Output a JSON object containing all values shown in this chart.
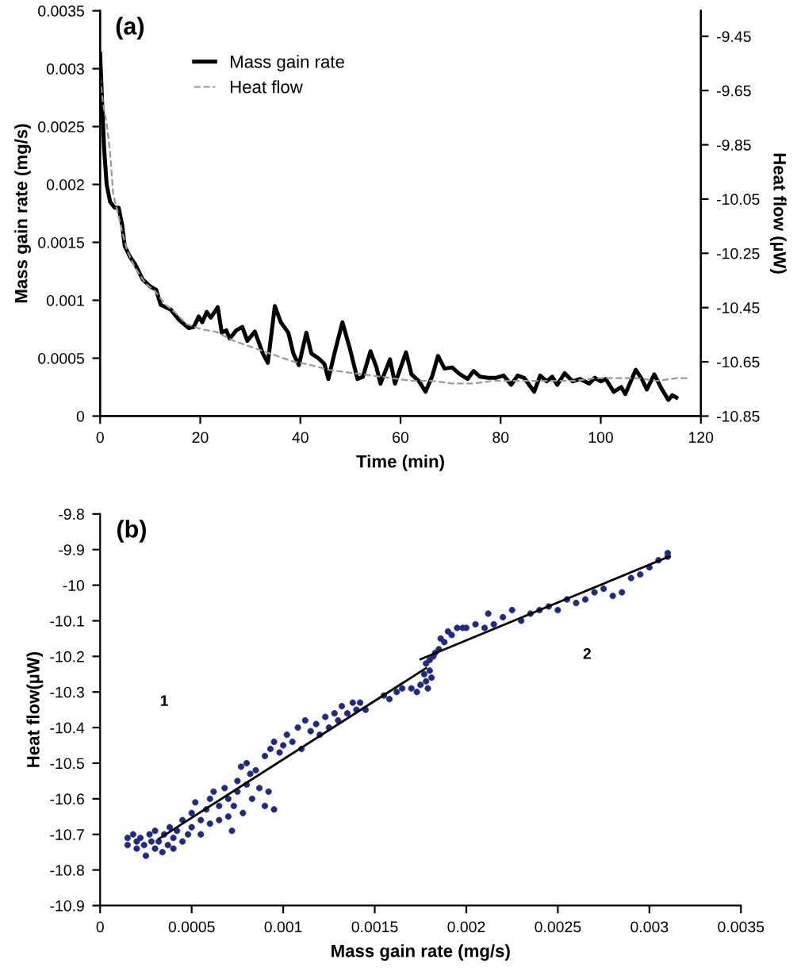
{
  "chart_data": [
    {
      "type": "line",
      "title": "(a)",
      "xlabel": "Time (min)",
      "ylabel": "Mass gain rate (mg/s)",
      "y2label": "Heat flow (µW)",
      "xlim": [
        0,
        120
      ],
      "xticks": [
        0,
        20,
        40,
        60,
        80,
        100,
        120
      ],
      "ylim": [
        0,
        0.0035
      ],
      "yticks": [
        0,
        0.0005,
        0.001,
        0.0015,
        0.002,
        0.0025,
        0.003,
        0.0035
      ],
      "y2lim": [
        -10.85,
        -9.356
      ],
      "y2ticks": [
        -10.85,
        -10.65,
        -10.45,
        -10.25,
        -10.05,
        -9.85,
        -9.65,
        -9.45
      ],
      "legend": "top left",
      "grid": false,
      "series": [
        {
          "name": "Mass gain rate",
          "color": "#000000",
          "line_style": "solid",
          "x": [
            0,
            0.4,
            0.8,
            1.3,
            2.0,
            2.9,
            3.7,
            4.4,
            4.9,
            5.9,
            7.0,
            8.5,
            10.0,
            11.2,
            12.1,
            14.1,
            15.8,
            17.7,
            18.7,
            19.7,
            20.4,
            21.3,
            22.1,
            23.5,
            24.3,
            25.2,
            25.9,
            27.2,
            28.4,
            29.4,
            30.9,
            32.5,
            33.5,
            34.9,
            36.1,
            37.6,
            38.6,
            39.7,
            41.2,
            42.2,
            43.6,
            44.8,
            45.6,
            46.8,
            48.4,
            49.9,
            51.4,
            52.5,
            54.0,
            55.2,
            56.0,
            57.9,
            58.9,
            61.1,
            62.2,
            63.7,
            65.0,
            66.3,
            67.5,
            68.8,
            70.3,
            71.9,
            73.4,
            74.6,
            75.9,
            77.5,
            79.0,
            80.6,
            82.1,
            83.4,
            84.7,
            85.7,
            86.7,
            87.9,
            89.2,
            90.3,
            91.3,
            92.8,
            94.4,
            95.9,
            97.7,
            98.8,
            100.0,
            101.0,
            102.6,
            104.1,
            104.9,
            107.0,
            108.2,
            109.2,
            110.7,
            112.1,
            113.5,
            114.3,
            115.1
          ],
          "values": [
            0.00313,
            0.00271,
            0.00231,
            0.002,
            0.00185,
            0.0018,
            0.0018,
            0.00165,
            0.00147,
            0.00138,
            0.00131,
            0.00118,
            0.00112,
            0.00109,
            0.00096,
            0.00092,
            0.00083,
            0.00076,
            0.00077,
            0.00086,
            0.00081,
            0.0009,
            0.00085,
            0.00094,
            0.00072,
            0.00074,
            0.00067,
            0.00074,
            0.00077,
            0.00065,
            0.00073,
            0.00054,
            0.00046,
            0.00095,
            0.00081,
            0.00072,
            0.00054,
            0.00044,
            0.00072,
            0.00054,
            0.0005,
            0.00045,
            0.00032,
            0.00054,
            0.00081,
            0.00058,
            0.00032,
            0.00034,
            0.00056,
            0.00042,
            0.00028,
            0.00049,
            0.00028,
            0.00055,
            0.00036,
            0.0003,
            0.00021,
            0.00034,
            0.00052,
            0.00041,
            0.00042,
            0.00036,
            0.00032,
            0.00039,
            0.00034,
            0.00033,
            0.00033,
            0.00035,
            0.00027,
            0.00035,
            0.00033,
            0.00027,
            0.00021,
            0.00035,
            0.0003,
            0.00034,
            0.00027,
            0.00037,
            0.0003,
            0.00032,
            0.00028,
            0.00033,
            0.0003,
            0.00032,
            0.00021,
            0.00025,
            0.00019,
            0.0004,
            0.00032,
            0.00023,
            0.00036,
            0.00024,
            0.00014,
            0.00018,
            0.00016
          ]
        },
        {
          "name": "Heat flow",
          "color": "#999999",
          "line_style": "dashed",
          "axis": "y2",
          "x": [
            0,
            0.6,
            1.3,
            2.0,
            2.6,
            3.4,
            4.4,
            5.4,
            6.9,
            9.0,
            11.0,
            13.1,
            15.1,
            17.2,
            20.2,
            23.3,
            26.4,
            29.4,
            32.5,
            35.6,
            38.7,
            41.7,
            45.8,
            49.9,
            53.99,
            58.1,
            62.2,
            66.3,
            70.3,
            74.4,
            78.5,
            82.6,
            86.7,
            90.8,
            94.9,
            99.0,
            103.1,
            107.2,
            111.3,
            115.3,
            117.4
          ],
          "values": [
            -9.6,
            -9.7,
            -9.77,
            -9.88,
            -10.03,
            -10.09,
            -10.17,
            -10.24,
            -10.3,
            -10.36,
            -10.39,
            -10.44,
            -10.47,
            -10.51,
            -10.53,
            -10.54,
            -10.57,
            -10.59,
            -10.61,
            -10.63,
            -10.65,
            -10.66,
            -10.68,
            -10.69,
            -10.7,
            -10.71,
            -10.72,
            -10.72,
            -10.73,
            -10.73,
            -10.72,
            -10.72,
            -10.72,
            -10.72,
            -10.72,
            -10.71,
            -10.71,
            -10.71,
            -10.72,
            -10.71,
            -10.71
          ]
        }
      ]
    },
    {
      "type": "scatter",
      "title": "(b)",
      "xlabel": "Mass gain rate (mg/s)",
      "ylabel": "Heat flow(µW)",
      "xlim": [
        0,
        0.0035
      ],
      "xticks": [
        0,
        0.0005,
        0.001,
        0.0015,
        0.002,
        0.0025,
        0.003,
        0.0035
      ],
      "ylim": [
        -10.9,
        -9.8
      ],
      "yticks": [
        -10.9,
        -10.8,
        -10.7,
        -10.6,
        -10.5,
        -10.4,
        -10.3,
        -10.2,
        -10.1,
        -10,
        -9.9,
        -9.8
      ],
      "grid": false,
      "annotations": [
        "1",
        "2"
      ],
      "series": [
        {
          "color": "#1f2a80",
          "marker": "circle",
          "x": [
            0.00015,
            0.00015,
            0.00018,
            0.0002,
            0.0002,
            0.00022,
            0.00024,
            0.00025,
            0.00027,
            0.00028,
            0.0003,
            0.0003,
            0.00032,
            0.00034,
            0.00035,
            0.00037,
            0.00038,
            0.0004,
            0.0004,
            0.00042,
            0.00045,
            0.00045,
            0.00048,
            0.0005,
            0.0005,
            0.00052,
            0.00055,
            0.00055,
            0.00058,
            0.0006,
            0.0006,
            0.00062,
            0.00065,
            0.00065,
            0.00068,
            0.0007,
            0.0007,
            0.00072,
            0.00073,
            0.00075,
            0.00075,
            0.00077,
            0.00078,
            0.0008,
            0.0008,
            0.00082,
            0.00083,
            0.00085,
            0.00087,
            0.0009,
            0.0009,
            0.00092,
            0.00093,
            0.00095,
            0.00095,
            0.00098,
            0.001,
            0.00102,
            0.00105,
            0.00108,
            0.0011,
            0.00112,
            0.00115,
            0.00118,
            0.0012,
            0.00123,
            0.00125,
            0.00128,
            0.0013,
            0.00132,
            0.00135,
            0.00138,
            0.0014,
            0.00142,
            0.00145,
            0.00155,
            0.00158,
            0.00162,
            0.00165,
            0.0017,
            0.00173,
            0.00175,
            0.00177,
            0.00178,
            0.00178,
            0.00179,
            0.0018,
            0.0018,
            0.00181,
            0.00182,
            0.00183,
            0.00185,
            0.00186,
            0.00188,
            0.0019,
            0.00192,
            0.00195,
            0.00198,
            0.002,
            0.00205,
            0.0021,
            0.00212,
            0.00215,
            0.0022,
            0.00225,
            0.0023,
            0.00235,
            0.0024,
            0.00245,
            0.0025,
            0.00255,
            0.0026,
            0.00265,
            0.0027,
            0.00275,
            0.0028,
            0.00285,
            0.0029,
            0.00295,
            0.003,
            0.00305,
            0.0031,
            0.0031
          ],
          "values": [
            -10.71,
            -10.73,
            -10.7,
            -10.72,
            -10.74,
            -10.71,
            -10.73,
            -10.76,
            -10.7,
            -10.72,
            -10.74,
            -10.69,
            -10.72,
            -10.75,
            -10.7,
            -10.73,
            -10.68,
            -10.71,
            -10.74,
            -10.69,
            -10.72,
            -10.66,
            -10.7,
            -10.68,
            -10.64,
            -10.61,
            -10.66,
            -10.7,
            -10.63,
            -10.6,
            -10.67,
            -10.58,
            -10.62,
            -10.66,
            -10.57,
            -10.6,
            -10.65,
            -10.69,
            -10.62,
            -10.55,
            -10.58,
            -10.51,
            -10.64,
            -10.5,
            -10.56,
            -10.53,
            -10.6,
            -10.52,
            -10.57,
            -10.48,
            -10.62,
            -10.58,
            -10.46,
            -10.63,
            -10.44,
            -10.47,
            -10.45,
            -10.42,
            -10.44,
            -10.4,
            -10.46,
            -10.38,
            -10.41,
            -10.39,
            -10.42,
            -10.37,
            -10.4,
            -10.36,
            -10.38,
            -10.34,
            -10.36,
            -10.33,
            -10.35,
            -10.33,
            -10.35,
            -10.31,
            -10.32,
            -10.3,
            -10.29,
            -10.29,
            -10.3,
            -10.28,
            -10.25,
            -10.22,
            -10.27,
            -10.29,
            -10.21,
            -10.24,
            -10.26,
            -10.2,
            -10.19,
            -10.18,
            -10.15,
            -10.16,
            -10.13,
            -10.14,
            -10.12,
            -10.12,
            -10.12,
            -10.11,
            -10.12,
            -10.08,
            -10.11,
            -10.09,
            -10.07,
            -10.1,
            -10.08,
            -10.07,
            -10.06,
            -10.07,
            -10.04,
            -10.05,
            -10.04,
            -10.02,
            -10.01,
            -10.03,
            -10.02,
            -9.98,
            -9.97,
            -9.95,
            -9.93,
            -9.92,
            -9.91
          ]
        },
        {
          "type": "line",
          "color": "#000000",
          "x": [
            0.000322,
            0.00178
          ],
          "values": [
            -10.712,
            -10.233
          ]
        },
        {
          "type": "line",
          "color": "#000000",
          "x": [
            0.00175,
            0.00311
          ],
          "values": [
            -10.208,
            -9.919
          ]
        }
      ]
    }
  ]
}
